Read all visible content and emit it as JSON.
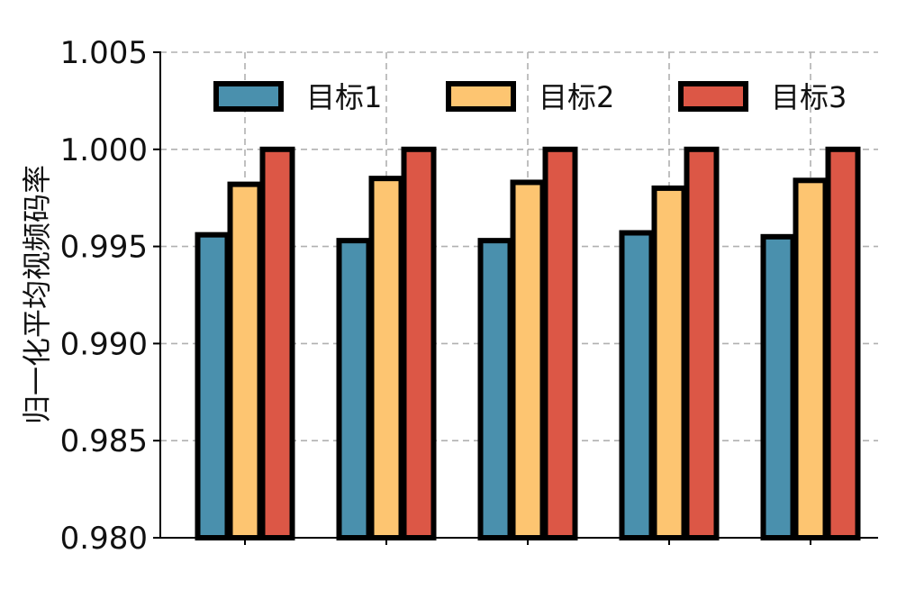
{
  "chart_data": {
    "type": "bar",
    "categories": [
      "",
      "",
      "",
      "",
      ""
    ],
    "series": [
      {
        "name": "目标1",
        "color": "#4a90ad",
        "values": [
          0.9956,
          0.9953,
          0.9953,
          0.9957,
          0.9955
        ]
      },
      {
        "name": "目标2",
        "color": "#fdc571",
        "values": [
          0.9982,
          0.9985,
          0.9983,
          0.998,
          0.9984
        ]
      },
      {
        "name": "目标3",
        "color": "#dc5746",
        "values": [
          1.0,
          1.0,
          1.0,
          1.0,
          1.0
        ]
      }
    ],
    "ylabel": "归一化平均视频码率",
    "ylim": [
      0.98,
      1.005
    ],
    "yticks": [
      "0.980",
      "0.985",
      "0.990",
      "0.995",
      "1.000",
      "1.005"
    ],
    "grid": true,
    "legend": "top"
  }
}
